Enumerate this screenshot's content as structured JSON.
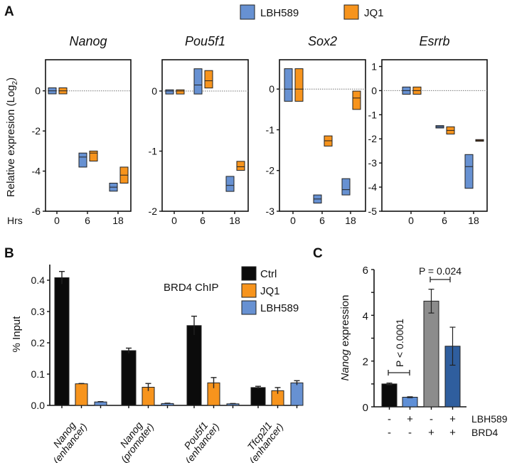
{
  "panel_labels": {
    "a": "A",
    "b": "B",
    "c": "C"
  },
  "colors": {
    "lbh589": "#6791d2",
    "jq1": "#f7941d",
    "jq1_dark": "#b8651b",
    "ctrl": "#0b0b0b",
    "brd4": "#8c8c8c",
    "brd4_lbh": "#2f5e9e",
    "lbh_light": "#5f8fd6"
  },
  "chart_data": [
    {
      "type": "floating-bar",
      "panel": "A",
      "legend": [
        "LBH589",
        "JQ1"
      ],
      "ylabel": "Relative expresion (Log2)",
      "xlabel": "Hrs",
      "x": [
        "0",
        "6",
        "18"
      ],
      "subplots": [
        {
          "title": "Nanog",
          "ylim": [
            -6,
            1.55
          ],
          "yticks": [
            "0",
            "-2",
            "-4",
            "-6"
          ],
          "series": [
            {
              "name": "LBH589",
              "low": [
                -0.15,
                -3.8,
                -5.0
              ],
              "median": [
                0,
                -3.3,
                -4.8
              ],
              "high": [
                0.15,
                -3.1,
                -4.6
              ]
            },
            {
              "name": "JQ1",
              "low": [
                -0.15,
                -3.5,
                -4.6
              ],
              "median": [
                0,
                -3.1,
                -4.2
              ],
              "high": [
                0.15,
                -3.0,
                -3.8
              ]
            }
          ]
        },
        {
          "title": "Pou5f1",
          "ylim": [
            -2,
            0.52
          ],
          "yticks": [
            "0",
            "-1",
            "-2"
          ],
          "series": [
            {
              "name": "LBH589",
              "low": [
                -0.05,
                -0.05,
                -1.67
              ],
              "median": [
                0,
                0.1,
                -1.57
              ],
              "high": [
                0.02,
                0.37,
                -1.42
              ]
            },
            {
              "name": "JQ1",
              "low": [
                -0.05,
                0.05,
                -1.32
              ],
              "median": [
                0,
                0.17,
                -1.26
              ],
              "high": [
                0.02,
                0.34,
                -1.17
              ]
            }
          ]
        },
        {
          "title": "Sox2",
          "ylim": [
            -3,
            0.72
          ],
          "yticks": [
            "0",
            "-1",
            "-2",
            "-3"
          ],
          "series": [
            {
              "name": "LBH589",
              "low": [
                -0.3,
                -2.8,
                -2.6
              ],
              "median": [
                0,
                -2.7,
                -2.47
              ],
              "high": [
                0.5,
                -2.6,
                -2.2
              ]
            },
            {
              "name": "JQ1",
              "low": [
                -0.3,
                -1.4,
                -0.5
              ],
              "median": [
                0,
                -1.27,
                -0.22
              ],
              "high": [
                0.5,
                -1.15,
                -0.05
              ]
            }
          ]
        },
        {
          "title": "Esrrb",
          "ylim": [
            -5,
            1.28
          ],
          "yticks": [
            "1",
            "0",
            "-1",
            "-2",
            "-3",
            "-4",
            "-5"
          ],
          "series": [
            {
              "name": "LBH589",
              "low": [
                -0.15,
                -1.55,
                -4.05
              ],
              "median": [
                0,
                -1.5,
                -3.15
              ],
              "high": [
                0.15,
                -1.45,
                -2.65
              ]
            },
            {
              "name": "JQ1",
              "low": [
                -0.15,
                -1.8,
                -2.1
              ],
              "median": [
                0,
                -1.65,
                -2.06
              ],
              "high": [
                0.15,
                -1.5,
                -2.03
              ]
            }
          ]
        }
      ]
    },
    {
      "type": "bar",
      "panel": "B",
      "title": "BRD4 ChIP",
      "ylabel": "% Input",
      "ylim": [
        0,
        0.45
      ],
      "yticks": [
        "0.0",
        "0.1",
        "0.2",
        "0.3",
        "0.4"
      ],
      "categories": [
        "Nanog",
        "Nanog",
        "Pou5f1",
        "Tfcp2l1"
      ],
      "categories_sub": [
        "(enhancer)",
        "(promoter)",
        "(enhancer)",
        "(enhancer)"
      ],
      "legend_position": "top-right",
      "series": [
        {
          "name": "Ctrl",
          "values": [
            0.408,
            0.175,
            0.255,
            0.057
          ],
          "errors": [
            0.02,
            0.008,
            0.03,
            0.004
          ]
        },
        {
          "name": "JQ1",
          "values": [
            0.069,
            0.058,
            0.072,
            0.047
          ],
          "errors": [
            0.001,
            0.012,
            0.017,
            0.01
          ]
        },
        {
          "name": "LBH589",
          "values": [
            0.011,
            0.006,
            0.005,
            0.072
          ],
          "errors": [
            0.001,
            0.001,
            0.001,
            0.007
          ]
        }
      ]
    },
    {
      "type": "bar",
      "panel": "C",
      "ylabel_italic": "Nanog",
      "ylabel_rest": " expression",
      "ylim": [
        0,
        6
      ],
      "yticks": [
        "0",
        "2",
        "4",
        "6"
      ],
      "values": [
        1.0,
        0.42,
        4.62,
        2.65
      ],
      "errors": [
        0.04,
        0.02,
        0.52,
        0.83
      ],
      "conditions": [
        {
          "name": "LBH589",
          "signs": [
            "-",
            "+",
            "-",
            "+"
          ]
        },
        {
          "name": "BRD4",
          "signs": [
            "-",
            "-",
            "+",
            "+"
          ]
        }
      ],
      "annotations": [
        "P < 0.0001",
        "P = 0.024"
      ]
    }
  ]
}
